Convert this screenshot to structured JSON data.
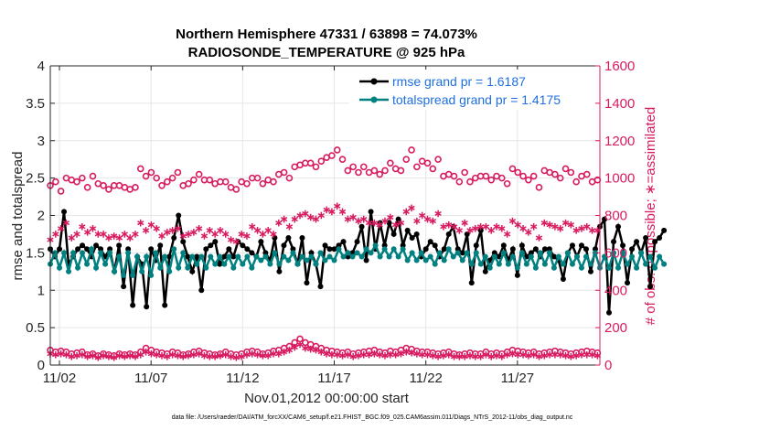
{
  "chart_data": {
    "type": "line",
    "title_line1": "Northern Hemisphere 47331 / 63898 = 74.073%",
    "title_line2": "RADIOSONDE_TEMPERATURE @ 925 hPa",
    "xlabel": "Nov.01,2012 00:00:00 start",
    "ylabel_left": "rmse and totalspread",
    "ylabel_right": "# of obs: o=possible; ∗=assimilated",
    "footnote": "data file: /Users/raeder/DAI/ATM_forcXX/CAM6_setup/f.e21.FHIST_BGC.f09_025.CAM6assim.011/Diags_NTrS_2012-11/obs_diag_output.nc",
    "x_ticks": [
      "11/02",
      "11/07",
      "11/12",
      "11/17",
      "11/22",
      "11/27"
    ],
    "x_tick_days": [
      2,
      7,
      12,
      17,
      22,
      27
    ],
    "xlim": [
      1.5,
      31.5
    ],
    "ylim_left": [
      0,
      4
    ],
    "ylim_right": [
      0,
      1600
    ],
    "y_ticks_left": [
      "0",
      "0.5",
      "1",
      "1.5",
      "2",
      "2.5",
      "3",
      "3.5",
      "4"
    ],
    "y_ticks_right": [
      "0",
      "200",
      "400",
      "600",
      "800",
      "1000",
      "1200",
      "1400",
      "1600"
    ],
    "legend": [
      "rmse grand pr = 1.6187",
      "totalspread grand pr = 1.4175"
    ],
    "colors": {
      "rmse": "#000000",
      "spread": "#00807f",
      "obs": "#d81b60",
      "legend_text": "#1f6fe0"
    },
    "x_start": 1.5,
    "x_step": 0.25,
    "series": [
      {
        "name": "rmse",
        "values": [
          1.55,
          1.45,
          1.55,
          2.05,
          1.35,
          1.45,
          1.55,
          1.6,
          1.55,
          1.45,
          1.6,
          1.55,
          1.45,
          1.55,
          1.25,
          1.6,
          1.05,
          1.55,
          0.8,
          1.45,
          1.35,
          0.78,
          1.55,
          1.4,
          1.6,
          0.8,
          1.45,
          1.7,
          2.0,
          1.65,
          1.45,
          1.25,
          1.45,
          1.0,
          1.55,
          1.6,
          1.65,
          1.35,
          1.45,
          1.55,
          1.45,
          1.65,
          1.6,
          1.55,
          1.5,
          1.45,
          1.65,
          1.5,
          1.4,
          1.7,
          1.25,
          1.6,
          1.7,
          1.55,
          1.35,
          1.7,
          1.1,
          1.5,
          1.35,
          1.05,
          1.6,
          1.55,
          1.55,
          1.6,
          1.65,
          1.45,
          1.5,
          1.65,
          1.85,
          1.4,
          2.05,
          1.55,
          1.9,
          1.6,
          1.9,
          1.75,
          1.95,
          1.6,
          1.8,
          1.7,
          1.75,
          1.45,
          1.55,
          1.65,
          1.6,
          1.45,
          1.55,
          1.75,
          1.85,
          1.55,
          1.5,
          1.75,
          1.1,
          1.6,
          1.8,
          1.25,
          1.4,
          1.5,
          1.45,
          1.6,
          1.4,
          1.55,
          1.2,
          1.6,
          1.45,
          1.5,
          1.55,
          1.45,
          1.55,
          1.55,
          1.45,
          1.4,
          1.15,
          1.5,
          1.6,
          1.45,
          1.6,
          1.55,
          1.25,
          1.55,
          1.85,
          1.95,
          0.7,
          1.65,
          1.85,
          1.6,
          1.1,
          1.55,
          1.65,
          1.5,
          1.7,
          1.05,
          1.65,
          1.7,
          1.8
        ],
        "color": "#000000"
      },
      {
        "name": "totalspread",
        "values": [
          1.35,
          1.5,
          1.3,
          1.5,
          1.25,
          1.5,
          1.3,
          1.5,
          1.35,
          1.55,
          1.3,
          1.5,
          1.35,
          1.5,
          1.25,
          1.45,
          1.2,
          1.5,
          1.2,
          1.45,
          1.25,
          1.45,
          1.2,
          1.5,
          1.3,
          1.45,
          1.25,
          1.55,
          1.3,
          1.5,
          1.3,
          1.45,
          1.35,
          1.45,
          1.3,
          1.45,
          1.35,
          1.45,
          1.35,
          1.45,
          1.3,
          1.45,
          1.35,
          1.45,
          1.3,
          1.45,
          1.4,
          1.45,
          1.35,
          1.5,
          1.35,
          1.45,
          1.4,
          1.5,
          1.35,
          1.45,
          1.4,
          1.45,
          1.35,
          1.5,
          1.4,
          1.45,
          1.4,
          1.55,
          1.45,
          1.5,
          1.45,
          1.5,
          1.45,
          1.55,
          1.5,
          1.6,
          1.45,
          1.55,
          1.45,
          1.55,
          1.45,
          1.55,
          1.4,
          1.5,
          1.4,
          1.5,
          1.4,
          1.45,
          1.35,
          1.5,
          1.4,
          1.55,
          1.45,
          1.5,
          1.4,
          1.5,
          1.35,
          1.5,
          1.35,
          1.45,
          1.3,
          1.45,
          1.35,
          1.5,
          1.35,
          1.45,
          1.3,
          1.5,
          1.35,
          1.45,
          1.3,
          1.5,
          1.35,
          1.5,
          1.3,
          1.45,
          1.35,
          1.5,
          1.35,
          1.45,
          1.3,
          1.45,
          1.35,
          1.5,
          1.3,
          1.45,
          1.3,
          1.5,
          1.3,
          1.5,
          1.35,
          1.45,
          1.3,
          1.5,
          1.35,
          1.45,
          1.3,
          1.45,
          1.35
        ],
        "color": "#00807f"
      },
      {
        "name": "obs_possible",
        "values": [
          960,
          980,
          930,
          1000,
          990,
          980,
          1000,
          950,
          1010,
          970,
          960,
          940,
          960,
          960,
          950,
          940,
          950,
          1050,
          1010,
          1030,
          1000,
          960,
          980,
          1000,
          1030,
          960,
          970,
          990,
          1020,
          990,
          990,
          970,
          980,
          980,
          950,
          940,
          980,
          970,
          1000,
          1000,
          970,
          990,
          980,
          1020,
          1030,
          1000,
          1060,
          1070,
          1080,
          1080,
          1060,
          1090,
          1110,
          1120,
          1150,
          1100,
          1040,
          1060,
          1030,
          1060,
          1030,
          1040,
          1020,
          1040,
          1080,
          1050,
          1040,
          1100,
          1150,
          1060,
          1090,
          1080,
          1050,
          1100,
          1010,
          1020,
          1010,
          980,
          1030,
          980,
          1000,
          1010,
          1010,
          990,
          1010,
          1000,
          970,
          1050,
          1030,
          1010,
          990,
          1010,
          950,
          1040,
          1030,
          1020,
          1000,
          1050,
          1030,
          980,
          1010,
          1020,
          980,
          990,
          980
        ],
        "color": "#d81b60"
      },
      {
        "name": "obs_assimilated",
        "values": [
          670,
          700,
          730,
          760,
          680,
          700,
          740,
          710,
          730,
          700,
          700,
          680,
          690,
          680,
          700,
          680,
          700,
          760,
          720,
          750,
          730,
          690,
          710,
          720,
          730,
          690,
          700,
          710,
          730,
          690,
          720,
          700,
          720,
          700,
          670,
          660,
          700,
          690,
          740,
          720,
          700,
          720,
          700,
          760,
          780,
          740,
          780,
          800,
          810,
          790,
          780,
          800,
          830,
          820,
          850,
          820,
          780,
          790,
          770,
          780,
          760,
          760,
          750,
          770,
          790,
          750,
          760,
          820,
          840,
          770,
          800,
          780,
          770,
          810,
          740,
          750,
          740,
          720,
          760,
          720,
          730,
          740,
          740,
          720,
          740,
          730,
          700,
          770,
          750,
          730,
          710,
          740,
          680,
          760,
          750,
          740,
          730,
          760,
          750,
          720,
          730,
          740,
          720,
          720,
          720
        ],
        "color": "#d81b60"
      },
      {
        "name": "obs_possible_low",
        "values": [
          80,
          70,
          75,
          70,
          60,
          65,
          70,
          55,
          60,
          50,
          60,
          55,
          50,
          60,
          55,
          60,
          55,
          70,
          90,
          80,
          70,
          65,
          60,
          70,
          65,
          55,
          60,
          70,
          75,
          65,
          60,
          55,
          60,
          70,
          60,
          55,
          60,
          70,
          75,
          70,
          60,
          65,
          75,
          80,
          90,
          100,
          120,
          140,
          120,
          110,
          100,
          90,
          80,
          75,
          70,
          65,
          70,
          60,
          65,
          70,
          75,
          80,
          70,
          65,
          75,
          70,
          80,
          90,
          85,
          75,
          70,
          70,
          65,
          60,
          65,
          70,
          60,
          55,
          60,
          65,
          60,
          60,
          70,
          60,
          65,
          60,
          70,
          80,
          75,
          70,
          65,
          70,
          60,
          65,
          70,
          75,
          70,
          65,
          60,
          65,
          70,
          75,
          70,
          65,
          0
        ],
        "color": "#d81b60"
      },
      {
        "name": "obs_assimilated_low",
        "values": [
          60,
          55,
          60,
          55,
          45,
          50,
          55,
          45,
          50,
          40,
          50,
          45,
          40,
          50,
          45,
          50,
          45,
          55,
          70,
          60,
          55,
          50,
          45,
          55,
          50,
          45,
          50,
          55,
          60,
          50,
          45,
          45,
          50,
          55,
          45,
          40,
          45,
          55,
          60,
          55,
          50,
          50,
          60,
          60,
          70,
          80,
          95,
          110,
          90,
          85,
          80,
          70,
          60,
          55,
          55,
          50,
          55,
          45,
          50,
          55,
          55,
          60,
          55,
          50,
          55,
          55,
          60,
          70,
          65,
          60,
          55,
          55,
          50,
          45,
          50,
          55,
          45,
          45,
          45,
          50,
          45,
          45,
          55,
          45,
          50,
          45,
          55,
          60,
          55,
          55,
          50,
          55,
          45,
          50,
          55,
          55,
          55,
          50,
          45,
          50,
          55,
          55,
          55,
          50,
          0
        ],
        "color": "#d81b60"
      }
    ],
    "obs_x_start": 1.5,
    "obs_x_step": 0.29
  }
}
